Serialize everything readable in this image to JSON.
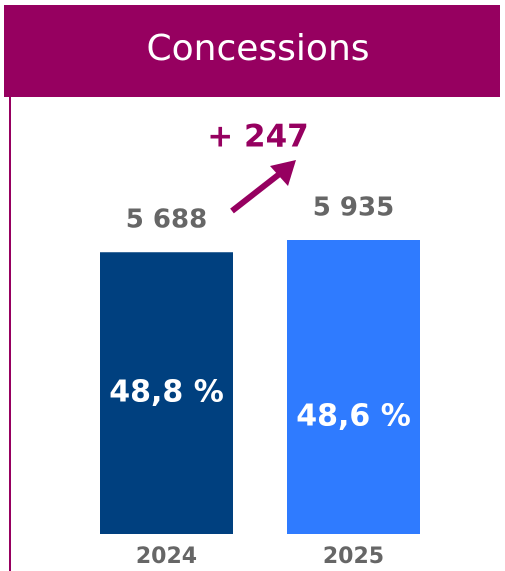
{
  "chart_data": {
    "type": "bar",
    "title": "Concessions",
    "categories": [
      "2024",
      "2025"
    ],
    "values": [
      5688,
      5935
    ],
    "value_labels": [
      "5 688",
      "5 935"
    ],
    "shares": [
      48.8,
      48.6
    ],
    "share_labels": [
      "48,8 %",
      "48,6 %"
    ],
    "colors": [
      "#00407f",
      "#2f7bff"
    ],
    "annotation": "+ 247"
  }
}
